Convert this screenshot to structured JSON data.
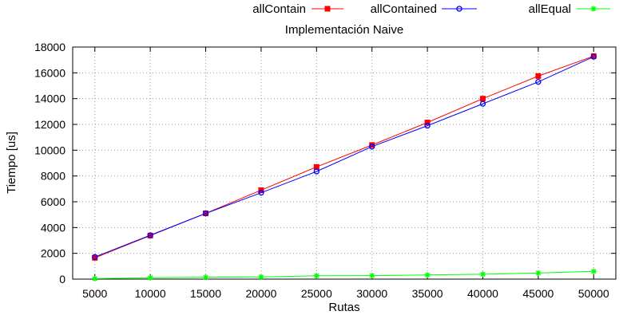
{
  "chart_data": {
    "type": "line",
    "title": "Implementación Naive",
    "xlabel": "Rutas",
    "ylabel": "Tiempo [us]",
    "x": [
      5000,
      10000,
      15000,
      20000,
      25000,
      30000,
      35000,
      40000,
      45000,
      50000
    ],
    "xlim": [
      5000,
      50000
    ],
    "ylim": [
      0,
      18000
    ],
    "x_ticks": [
      "5000",
      "10000",
      "15000",
      "20000",
      "25000",
      "30000",
      "35000",
      "40000",
      "45000",
      "50000"
    ],
    "y_ticks": [
      "0",
      "2000",
      "4000",
      "6000",
      "8000",
      "10000",
      "12000",
      "14000",
      "16000",
      "18000"
    ],
    "grid": true,
    "legend_position": "top",
    "series": [
      {
        "name": "allContain",
        "color": "#ff0000",
        "marker": "filled-square",
        "values": [
          1650,
          3380,
          5100,
          6900,
          8700,
          10400,
          12150,
          14000,
          15750,
          17300
        ]
      },
      {
        "name": "allContained",
        "color": "#0000ff",
        "marker": "open-circle",
        "values": [
          1720,
          3400,
          5100,
          6700,
          8350,
          10280,
          11900,
          13600,
          15300,
          17250
        ]
      },
      {
        "name": "allEqual",
        "color": "#00ff00",
        "marker": "star",
        "values": [
          40,
          110,
          150,
          170,
          260,
          270,
          320,
          380,
          470,
          600
        ]
      }
    ]
  }
}
